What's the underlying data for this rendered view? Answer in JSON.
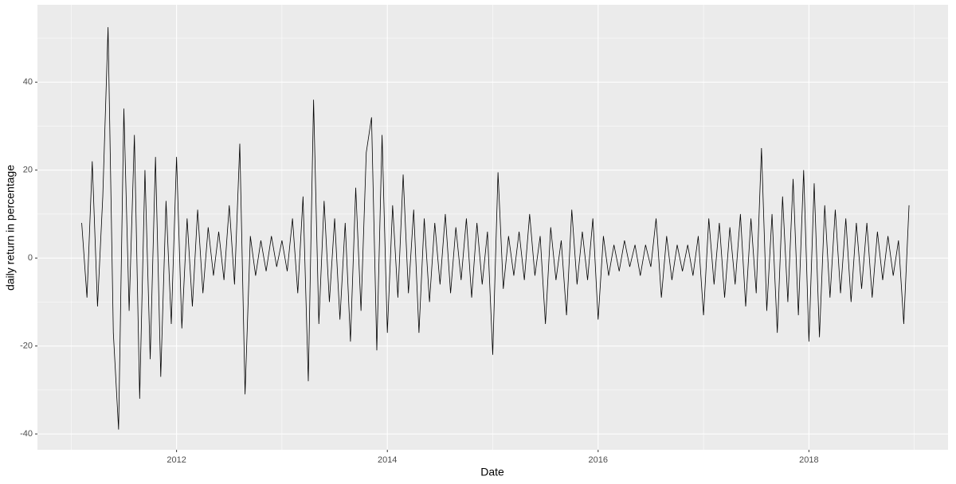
{
  "chart_data": {
    "type": "line",
    "x_label": "Date",
    "y_label": "daily return in percentage",
    "xlim": [
      2010.68,
      2019.32
    ],
    "ylim": [
      -43.6,
      57.6
    ],
    "xticks": [
      2012,
      2014,
      2016,
      2018
    ],
    "yticks": [
      -40,
      -20,
      0,
      20,
      40
    ],
    "x_minor_ticks": [
      2011,
      2013,
      2015,
      2017,
      2019
    ],
    "y_minor_ticks": [
      -30,
      -10,
      10,
      30,
      50
    ],
    "grid": true,
    "x": [
      2011.1,
      2011.15,
      2011.2,
      2011.25,
      2011.3,
      2011.35,
      2011.4,
      2011.45,
      2011.5,
      2011.55,
      2011.6,
      2011.65,
      2011.7,
      2011.75,
      2011.8,
      2011.85,
      2011.9,
      2011.95,
      2012,
      2012.05,
      2012.1,
      2012.15,
      2012.2,
      2012.25,
      2012.3,
      2012.35,
      2012.4,
      2012.45,
      2012.5,
      2012.55,
      2012.6,
      2012.65,
      2012.7,
      2012.75,
      2012.8,
      2012.85,
      2012.9,
      2012.95,
      2013,
      2013.05,
      2013.1,
      2013.15,
      2013.2,
      2013.25,
      2013.3,
      2013.35,
      2013.4,
      2013.45,
      2013.5,
      2013.55,
      2013.6,
      2013.65,
      2013.7,
      2013.75,
      2013.8,
      2013.85,
      2013.9,
      2013.95,
      2014,
      2014.05,
      2014.1,
      2014.15,
      2014.2,
      2014.25,
      2014.3,
      2014.35,
      2014.4,
      2014.45,
      2014.5,
      2014.55,
      2014.6,
      2014.65,
      2014.7,
      2014.75,
      2014.8,
      2014.85,
      2014.9,
      2014.95,
      2015,
      2015.05,
      2015.1,
      2015.15,
      2015.2,
      2015.25,
      2015.3,
      2015.35,
      2015.4,
      2015.45,
      2015.5,
      2015.55,
      2015.6,
      2015.65,
      2015.7,
      2015.75,
      2015.8,
      2015.85,
      2015.9,
      2015.95,
      2016,
      2016.05,
      2016.1,
      2016.15,
      2016.2,
      2016.25,
      2016.3,
      2016.35,
      2016.4,
      2016.45,
      2016.5,
      2016.55,
      2016.6,
      2016.65,
      2016.7,
      2016.75,
      2016.8,
      2016.85,
      2016.9,
      2016.95,
      2017,
      2017.05,
      2017.1,
      2017.15,
      2017.2,
      2017.25,
      2017.3,
      2017.35,
      2017.4,
      2017.45,
      2017.5,
      2017.55,
      2017.6,
      2017.65,
      2017.7,
      2017.75,
      2017.8,
      2017.85,
      2017.9,
      2017.95,
      2018,
      2018.05,
      2018.1,
      2018.15,
      2018.2,
      2018.25,
      2018.3,
      2018.35,
      2018.4,
      2018.45,
      2018.5,
      2018.55,
      2018.6,
      2018.65,
      2018.7,
      2018.75,
      2018.8,
      2018.85,
      2018.9,
      2018.95
    ],
    "series": [
      {
        "color": "#000000",
        "values": [
          8,
          -9,
          22,
          -11,
          14,
          52.5,
          -17,
          -39,
          34,
          -12,
          28,
          -32,
          20,
          -23,
          23,
          -27,
          13,
          -15,
          23,
          -16,
          9,
          -11,
          11,
          -8,
          7,
          -4,
          6,
          -5,
          12,
          -6,
          26,
          -31,
          5,
          -4,
          4,
          -3,
          5,
          -2,
          4,
          -3,
          9,
          -8,
          14,
          -28,
          36,
          -15,
          13,
          -10,
          9,
          -14,
          8,
          -19,
          16,
          -12,
          24,
          32,
          -21,
          28,
          -17,
          12,
          -9,
          19,
          -8,
          11,
          -17,
          9,
          -10,
          8,
          -6,
          10,
          -8,
          7,
          -5,
          9,
          -9,
          8,
          -6,
          6,
          -22,
          19.5,
          -7,
          5,
          -4,
          6,
          -5,
          10,
          -4,
          5,
          -15,
          7,
          -5,
          4,
          -13,
          11,
          -6,
          6,
          -5,
          9,
          -14,
          5,
          -4,
          3,
          -3,
          4,
          -2,
          3,
          -4,
          3,
          -2,
          9,
          -9,
          5,
          -5,
          3,
          -3,
          3,
          -4,
          5,
          -13,
          9,
          -6,
          8,
          -9,
          7,
          -6,
          10,
          -11,
          9,
          -8,
          25,
          -12,
          10,
          -17,
          14,
          -10,
          18,
          -13,
          20,
          -19,
          17,
          -18,
          12,
          -9,
          11,
          -8,
          9,
          -10,
          8,
          -7,
          8,
          -9,
          6,
          -5,
          5,
          -4,
          4,
          -15,
          12
        ]
      }
    ]
  }
}
